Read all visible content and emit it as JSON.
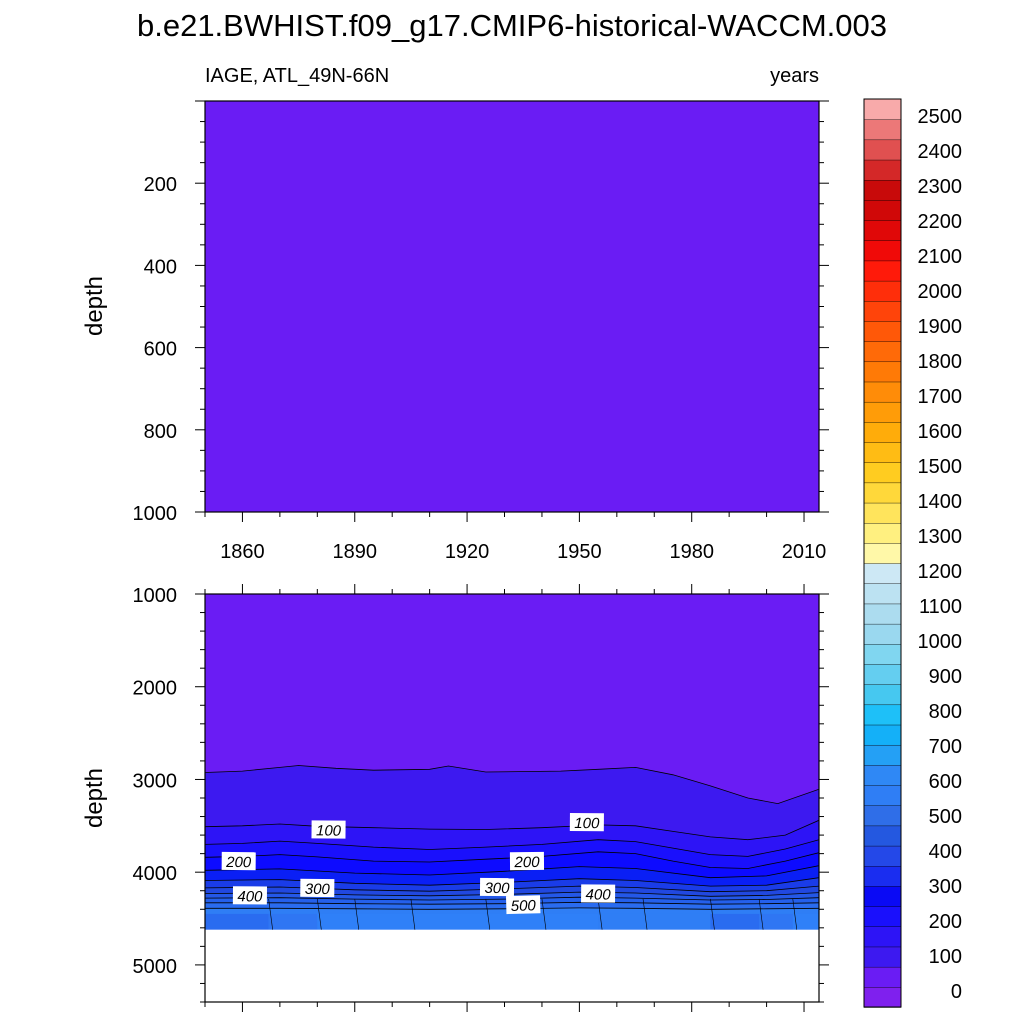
{
  "title": "b.e21.BWHIST.f09_g17.CMIP6-historical-WACCM.003",
  "colors": {
    "background_fill": "#6a1cf4",
    "missing": "#ffffff",
    "frame": "#000000"
  },
  "chart_data": [
    {
      "type": "heatmap",
      "panel": "upper",
      "left_label": "IAGE, ATL_49N-66N",
      "right_label": "years",
      "ylabel": "depth",
      "xlim": [
        1850,
        2014
      ],
      "ylim": [
        0,
        1000
      ],
      "y_reversed": true,
      "x_ticks": [
        1860,
        1890,
        1920,
        1950,
        1980,
        2010
      ],
      "y_ticks": [
        200,
        400,
        600,
        800,
        1000
      ],
      "field": "uniform age below 50 years throughout 0-1000 m"
    },
    {
      "type": "heatmap",
      "panel": "lower",
      "ylabel": "depth",
      "xlim": [
        1850,
        2014
      ],
      "ylim": [
        1000,
        5400
      ],
      "y_reversed": true,
      "y_ticks": [
        1000,
        2000,
        3000,
        4000,
        5000
      ],
      "x_ticks": [
        1860,
        1890,
        1920,
        1950,
        1980,
        2010
      ],
      "missing_below": 4620,
      "contour_levels": [
        {
          "level": 50,
          "color": "#3d19f0",
          "x": [
            1850,
            1860,
            1870,
            1875,
            1885,
            1895,
            1910,
            1915,
            1925,
            1945,
            1955,
            1965,
            1975,
            1985,
            1995,
            2003,
            2014
          ],
          "y": [
            2925,
            2910,
            2870,
            2850,
            2880,
            2900,
            2890,
            2855,
            2920,
            2910,
            2890,
            2870,
            2950,
            3070,
            3200,
            3260,
            3105
          ]
        },
        {
          "level": 100,
          "color": "#2d14f6",
          "x": [
            1850,
            1860,
            1870,
            1880,
            1895,
            1910,
            1925,
            1940,
            1955,
            1965,
            1975,
            1985,
            1995,
            2005,
            2014
          ],
          "y": [
            3510,
            3500,
            3480,
            3505,
            3520,
            3535,
            3540,
            3520,
            3490,
            3500,
            3560,
            3620,
            3650,
            3600,
            3440
          ]
        },
        {
          "level": 150,
          "color": "#1a10fc",
          "x": [
            1850,
            1860,
            1870,
            1880,
            1895,
            1910,
            1925,
            1940,
            1955,
            1965,
            1975,
            1985,
            1995,
            2005,
            2014
          ],
          "y": [
            3700,
            3690,
            3665,
            3690,
            3730,
            3755,
            3730,
            3700,
            3650,
            3670,
            3740,
            3810,
            3830,
            3750,
            3650
          ]
        },
        {
          "level": 200,
          "color": "#0d0bff",
          "x": [
            1850,
            1860,
            1870,
            1880,
            1895,
            1910,
            1925,
            1940,
            1955,
            1965,
            1975,
            1985,
            1995,
            2005,
            2014
          ],
          "y": [
            3840,
            3830,
            3810,
            3835,
            3880,
            3890,
            3860,
            3830,
            3780,
            3800,
            3880,
            3950,
            3960,
            3880,
            3790
          ]
        },
        {
          "level": 250,
          "color": "#0a1ff5",
          "x": [
            1850,
            1870,
            1890,
            1910,
            1930,
            1950,
            1965,
            1985,
            2000,
            2014
          ],
          "y": [
            3980,
            3965,
            4010,
            4030,
            3990,
            3940,
            3960,
            4060,
            4040,
            3930
          ]
        },
        {
          "level": 300,
          "color": "#1a3ce8",
          "x": [
            1850,
            1870,
            1890,
            1910,
            1930,
            1950,
            1965,
            1985,
            2000,
            2014
          ],
          "y": [
            4090,
            4080,
            4120,
            4140,
            4110,
            4070,
            4090,
            4150,
            4140,
            4060
          ]
        },
        {
          "level": 350,
          "color": "#2148e0",
          "x": [
            1850,
            1870,
            1890,
            1910,
            1930,
            1950,
            1965,
            1985,
            2000,
            2014
          ],
          "y": [
            4170,
            4160,
            4190,
            4205,
            4180,
            4150,
            4165,
            4210,
            4200,
            4150
          ]
        },
        {
          "level": 400,
          "color": "#2458e8",
          "x": [
            1850,
            1870,
            1890,
            1910,
            1930,
            1950,
            1965,
            1985,
            2000,
            2014
          ],
          "y": [
            4230,
            4225,
            4245,
            4255,
            4240,
            4215,
            4225,
            4260,
            4250,
            4220
          ]
        },
        {
          "level": 450,
          "color": "#2460ec",
          "x": [
            1850,
            1870,
            1890,
            1910,
            1930,
            1950,
            1965,
            1985,
            2000,
            2014
          ],
          "y": [
            4280,
            4275,
            4290,
            4300,
            4290,
            4270,
            4280,
            4300,
            4295,
            4275
          ]
        },
        {
          "level": 500,
          "color": "#2a6cf0",
          "x": [
            1850,
            1870,
            1890,
            1910,
            1930,
            1950,
            1965,
            1985,
            2000,
            2014
          ],
          "y": [
            4330,
            4330,
            4340,
            4345,
            4340,
            4325,
            4330,
            4345,
            4340,
            4330
          ]
        },
        {
          "level": 550,
          "color": "#2f7ef5",
          "x": [
            1850,
            1870,
            1890,
            1910,
            1930,
            1950,
            1965,
            1985,
            2000,
            2014
          ],
          "y": [
            4390,
            4390,
            4395,
            4400,
            4395,
            4385,
            4390,
            4400,
            4395,
            4390
          ]
        }
      ],
      "contour_labels": [
        {
          "text": "100",
          "x": 1883,
          "y": 3540
        },
        {
          "text": "100",
          "x": 1952,
          "y": 3460
        },
        {
          "text": "200",
          "x": 1859,
          "y": 3880
        },
        {
          "text": "200",
          "x": 1936,
          "y": 3880
        },
        {
          "text": "300",
          "x": 1880,
          "y": 4170
        },
        {
          "text": "300",
          "x": 1928,
          "y": 4160
        },
        {
          "text": "400",
          "x": 1862,
          "y": 4250
        },
        {
          "text": "400",
          "x": 1955,
          "y": 4230
        },
        {
          "text": "500",
          "x": 1935,
          "y": 4350
        }
      ],
      "bottom_cells": [
        {
          "x": [
            1850,
            1867
          ],
          "color": "#2a6cf0"
        },
        {
          "x": [
            1867,
            1880
          ],
          "color": "#2f76f3"
        },
        {
          "x": [
            1880,
            1890
          ],
          "color": "#2f80f8"
        },
        {
          "x": [
            1890,
            1905
          ],
          "color": "#2f80f8"
        },
        {
          "x": [
            1905,
            1925
          ],
          "color": "#2f80f8"
        },
        {
          "x": [
            1925,
            1940
          ],
          "color": "#2f80f8"
        },
        {
          "x": [
            1940,
            1955
          ],
          "color": "#2f80f8"
        },
        {
          "x": [
            1955,
            1967
          ],
          "color": "#2f7ef5"
        },
        {
          "x": [
            1967,
            1985
          ],
          "color": "#2f7ef5"
        },
        {
          "x": [
            1985,
            1998
          ],
          "color": "#2a6cf0"
        },
        {
          "x": [
            1998,
            2007
          ],
          "color": "#2f76f3"
        },
        {
          "x": [
            2007,
            2014
          ],
          "color": "#2f80f8"
        }
      ]
    }
  ],
  "colorbar": {
    "labels": [
      "0",
      "100",
      "200",
      "300",
      "400",
      "500",
      "600",
      "700",
      "800",
      "900",
      "1000",
      "1100",
      "1200",
      "1300",
      "1400",
      "1500",
      "1600",
      "1700",
      "1800",
      "1900",
      "2000",
      "2100",
      "2200",
      "2300",
      "2400",
      "2500"
    ],
    "colors": [
      "#7f20ee",
      "#6a1cf4",
      "#3d19f0",
      "#2d14f6",
      "#1a10fc",
      "#0a0af5",
      "#1a2df0",
      "#2448e8",
      "#2458e0",
      "#2f6ee8",
      "#2f7ef5",
      "#2f88f5",
      "#24a0f5",
      "#14b0f8",
      "#1ec0f8",
      "#46c8f0",
      "#64cef0",
      "#80d6f0",
      "#9ad8ef",
      "#acdcef",
      "#bce2f2",
      "#cde8f5",
      "#fff8a8",
      "#fff080",
      "#ffe45c",
      "#ffd83a",
      "#ffcc20",
      "#ffbc14",
      "#ffac0a",
      "#ff9c08",
      "#ff8c08",
      "#ff7a06",
      "#ff6a08",
      "#ff5808",
      "#ff440a",
      "#ff2e0a",
      "#ff1a0a",
      "#f00a08",
      "#e00808",
      "#d00808",
      "#c80a0a",
      "#d42828",
      "#e05050",
      "#ec7878",
      "#f8aaaa"
    ]
  }
}
